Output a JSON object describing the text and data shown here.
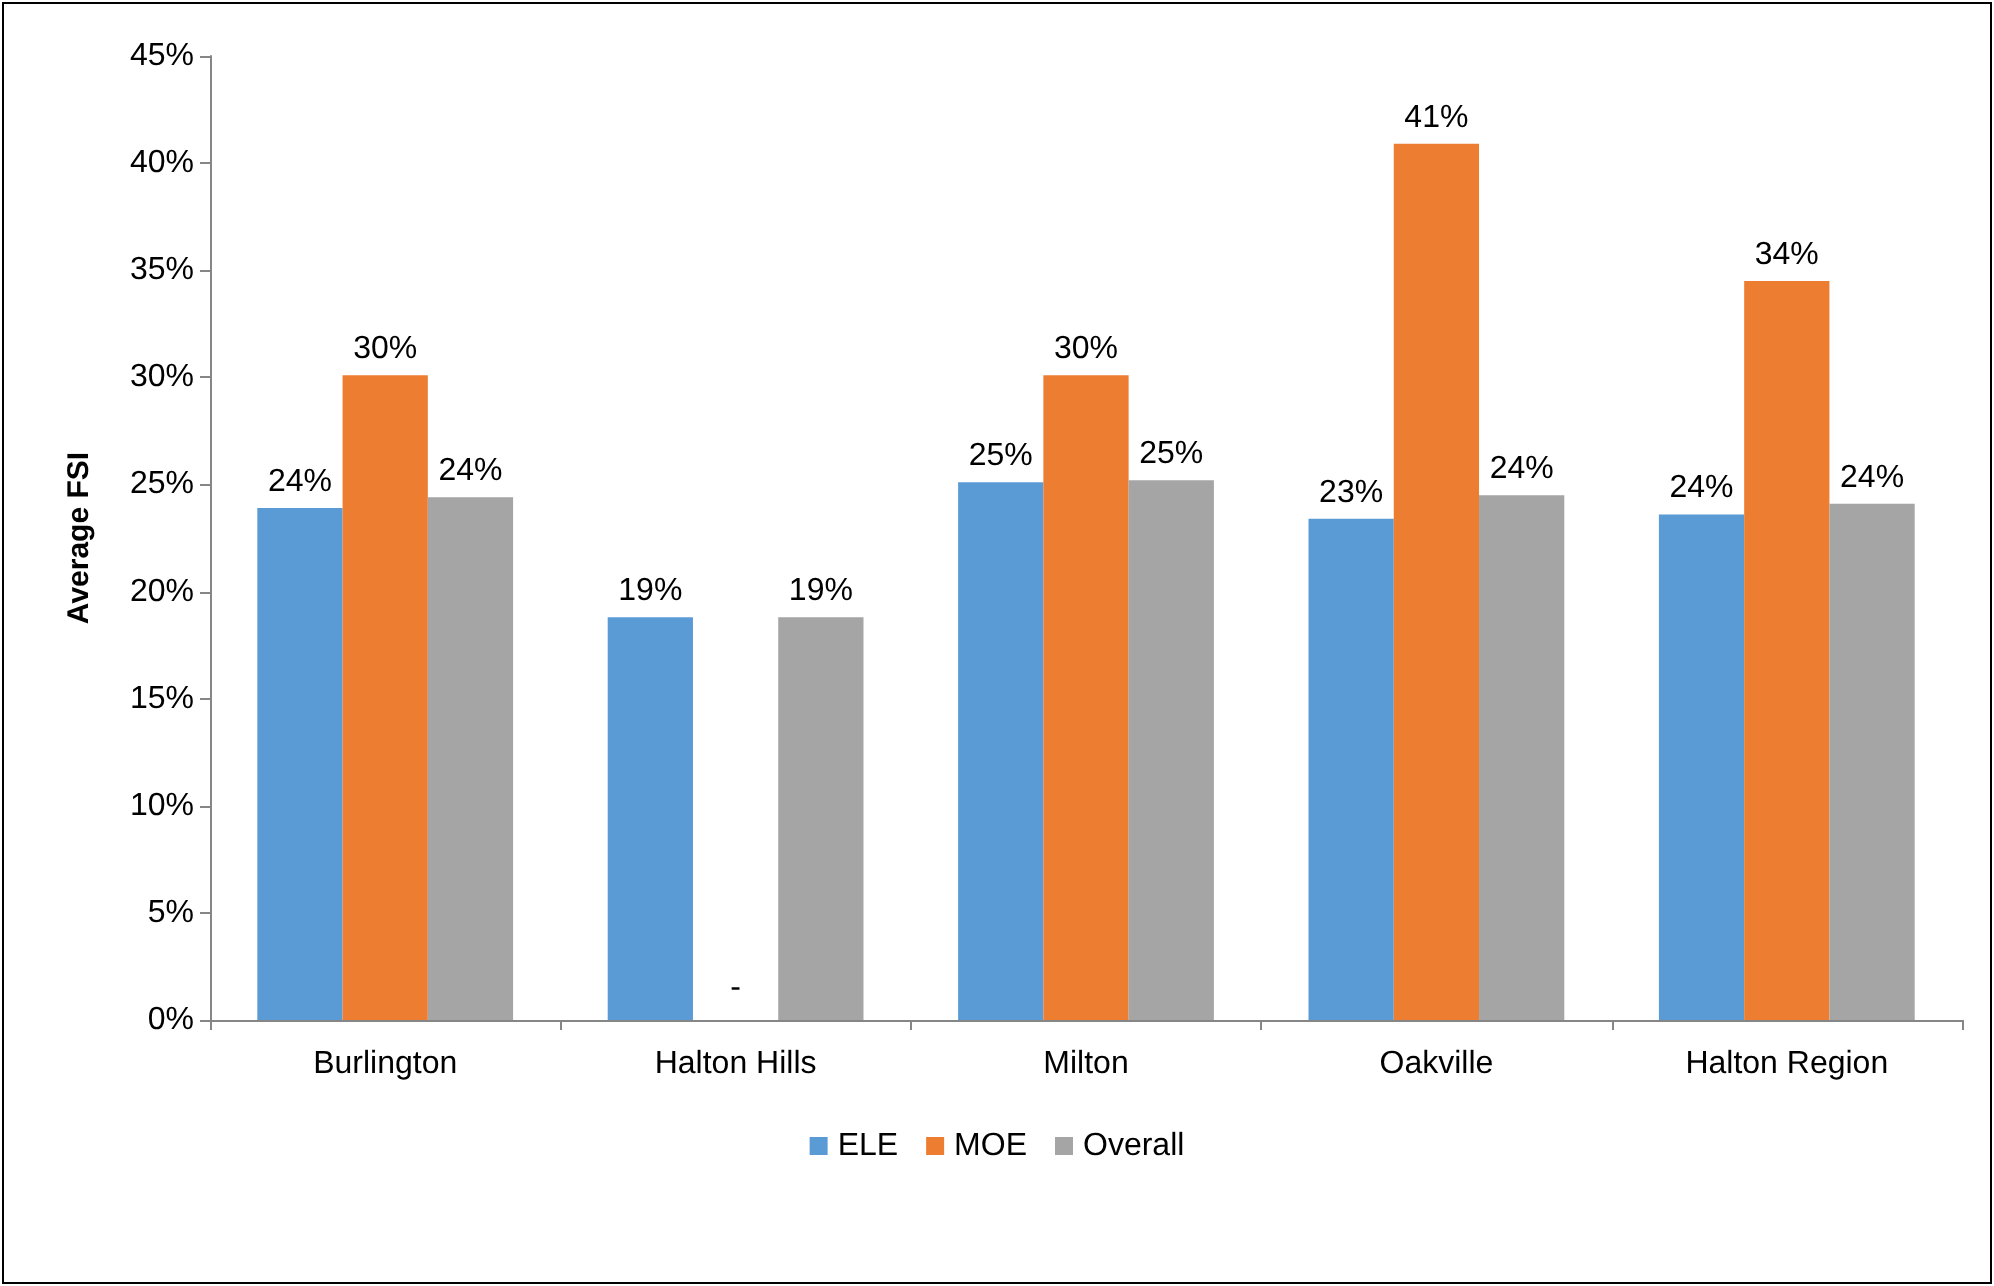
{
  "chart_data": {
    "type": "bar",
    "ylabel": "Average FSI",
    "categories": [
      "Burlington",
      "Halton Hills",
      "Milton",
      "Oakville",
      "Halton Region"
    ],
    "series": [
      {
        "name": "ELE",
        "color": "#5b9bd5",
        "values": [
          23.9,
          18.8,
          25.1,
          23.4,
          23.6
        ],
        "value_labels": [
          "24%",
          "19%",
          "25%",
          "23%",
          "24%"
        ]
      },
      {
        "name": "MOE",
        "color": "#ed7d31",
        "values": [
          30.1,
          null,
          30.1,
          40.9,
          34.5
        ],
        "value_labels": [
          "30%",
          "-",
          "30%",
          "41%",
          "34%"
        ]
      },
      {
        "name": "Overall",
        "color": "#a5a5a5",
        "values": [
          24.4,
          18.8,
          25.2,
          24.5,
          24.1
        ],
        "value_labels": [
          "24%",
          "19%",
          "25%",
          "24%",
          "24%"
        ]
      }
    ],
    "ylim": [
      0,
      45
    ],
    "yticks": [
      {
        "value": 0,
        "label": "0%"
      },
      {
        "value": 5,
        "label": "5%"
      },
      {
        "value": 10,
        "label": "10%"
      },
      {
        "value": 15,
        "label": "15%"
      },
      {
        "value": 20,
        "label": "20%"
      },
      {
        "value": 25,
        "label": "25%"
      },
      {
        "value": 30,
        "label": "30%"
      },
      {
        "value": 35,
        "label": "35%"
      },
      {
        "value": 40,
        "label": "40%"
      },
      {
        "value": 45,
        "label": "45%"
      }
    ],
    "grid": false,
    "legend": "bottom"
  }
}
